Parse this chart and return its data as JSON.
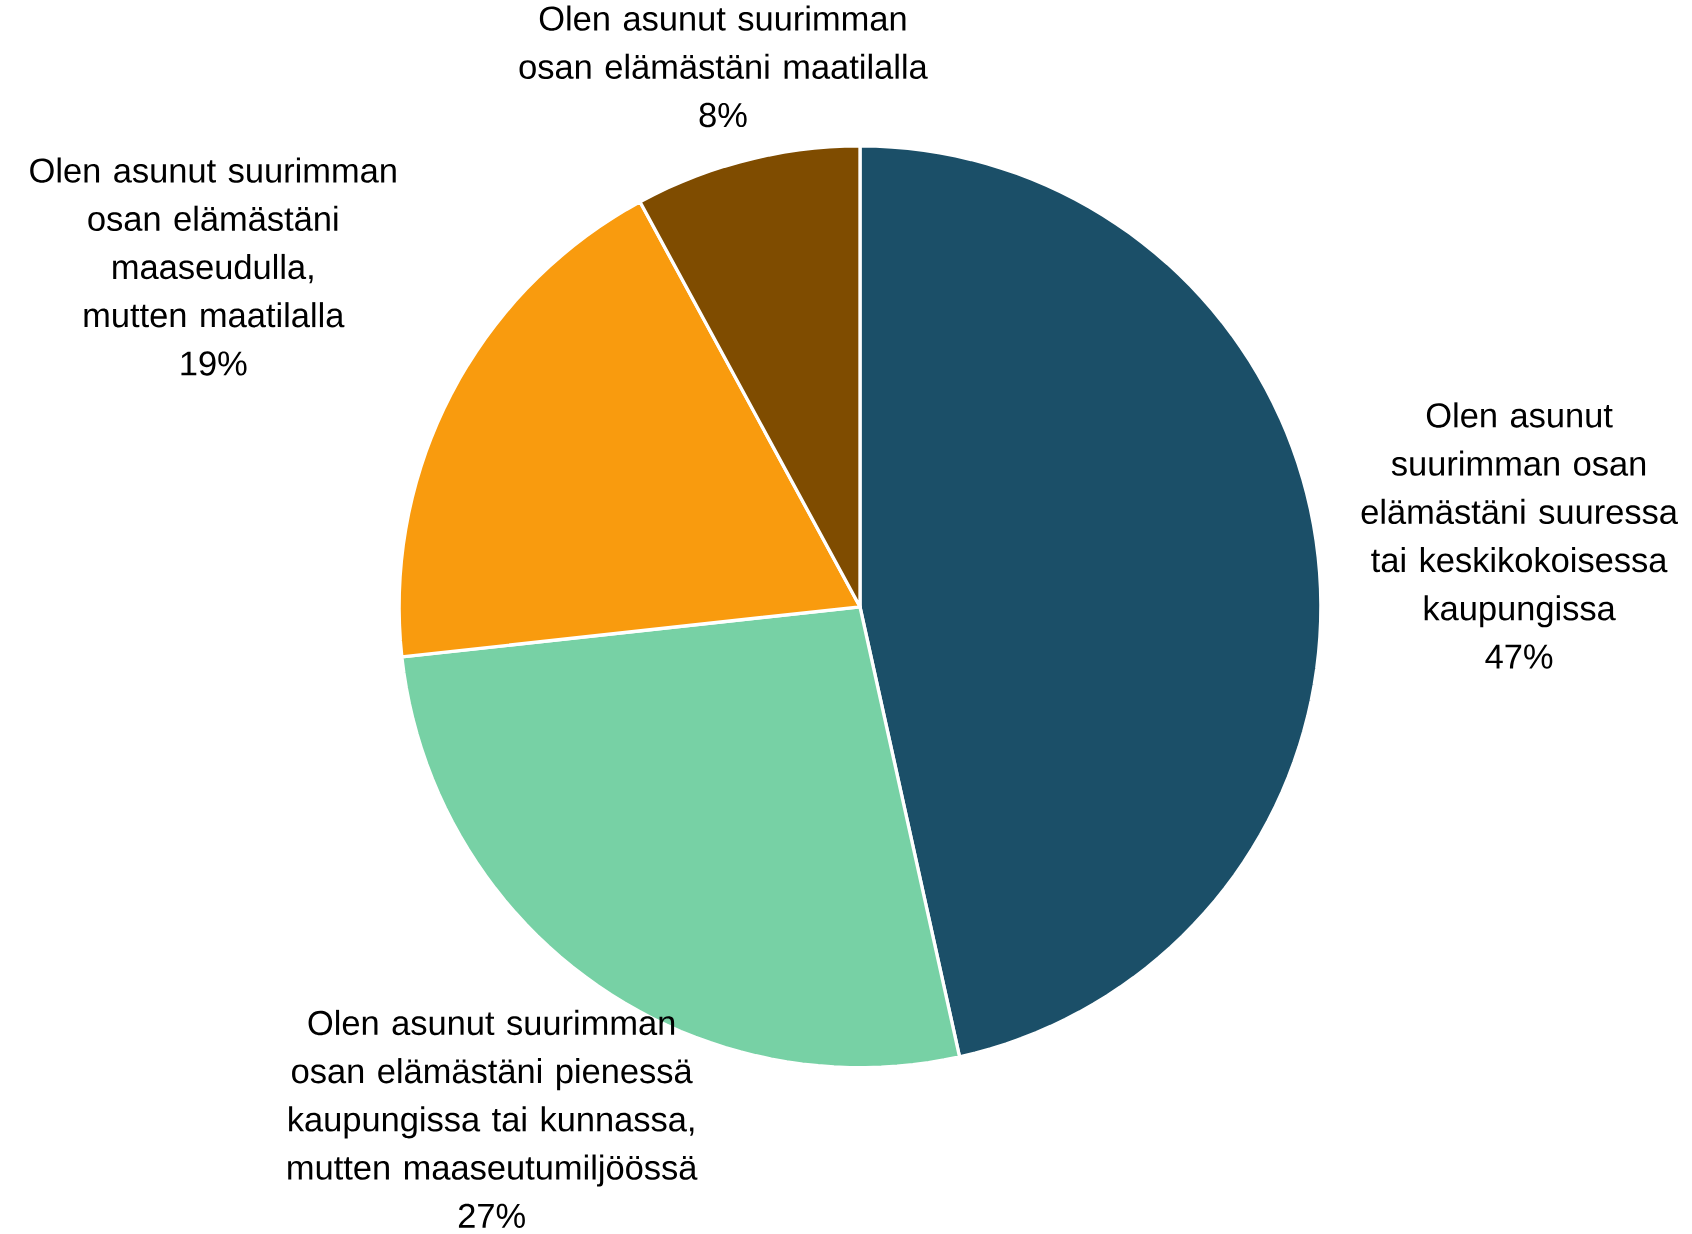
{
  "chart_data": {
    "type": "pie",
    "categories": [
      "Olen asunut suurimman osan elämästäni suuressa tai keskikokoisessa kaupungissa",
      "Olen asunut suurimman osan elämästäni pienessä kaupungissa tai kunnassa, mutten maaseutumiljöössä",
      "Olen asunut suurimman osan elämästäni maaseudulla, mutten maatilalla",
      "Olen asunut suurimman osan elämästäni maatilalla"
    ],
    "values": [
      47,
      27,
      19,
      8
    ],
    "value_labels": [
      "47%",
      "27%",
      "19%",
      "8%"
    ],
    "colors": [
      "#1b4f68",
      "#77d1a5",
      "#f99b0e",
      "#7f4c00"
    ]
  }
}
